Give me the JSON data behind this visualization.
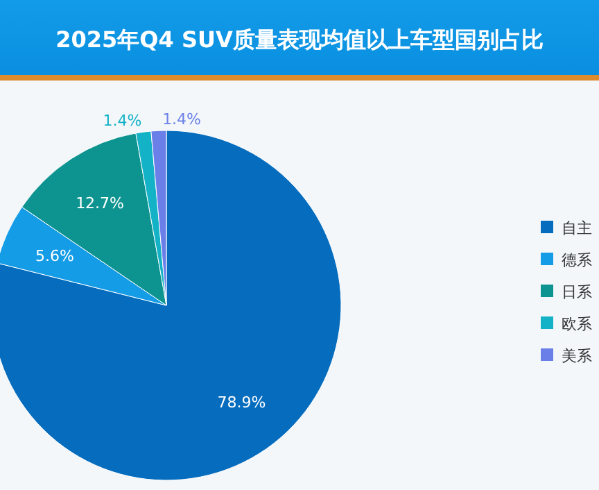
{
  "chart_data": {
    "type": "pie",
    "title": "2025年Q4 SUV质量表现均值以上车型国别占比",
    "categories": [
      "自主",
      "德系",
      "日系",
      "欧系",
      "美系"
    ],
    "values": [
      78.9,
      5.6,
      12.7,
      1.4,
      1.4
    ],
    "colors": [
      "#066cbd",
      "#149ce6",
      "#0e9490",
      "#14b2c6",
      "#6a80e8"
    ],
    "value_labels": [
      "78.9%",
      "5.6%",
      "12.7%",
      "1.4%",
      "1.4%"
    ],
    "legend": "right"
  }
}
